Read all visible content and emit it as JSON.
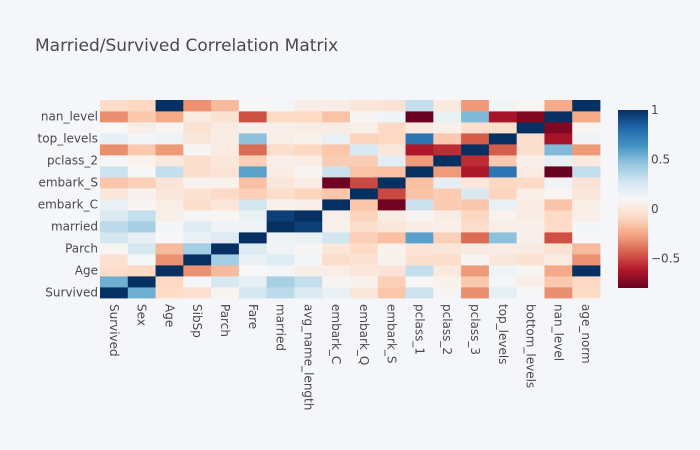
{
  "chart_data": {
    "type": "heatmap",
    "title": "Married/Survived Correlation Matrix",
    "labels": [
      "Survived",
      "Sex",
      "Age",
      "SibSp",
      "Parch",
      "Fare",
      "married",
      "avg_name_length",
      "embark_C",
      "embark_Q",
      "embark_S",
      "pclass_1",
      "pclass_2",
      "pclass_3",
      "top_levels",
      "bottom_levels",
      "nan_level",
      "age_norm"
    ],
    "x_tick_labels": [
      "Survived",
      "Sex",
      "Age",
      "SibSp",
      "Parch",
      "Fare",
      "married",
      "avg_name_length",
      "embark_C",
      "embark_Q",
      "embark_S",
      "pclass_1",
      "pclass_2",
      "pclass_3",
      "top_levels",
      "bottom_levels",
      "nan_level",
      "age_norm"
    ],
    "y_tick_labels": [
      "Survived",
      "",
      "Age",
      "",
      "Parch",
      "",
      "married",
      "",
      "embark_C",
      "",
      "embark_S",
      "",
      "pclass_2",
      "",
      "top_levels",
      "",
      "nan_level",
      ""
    ],
    "zmin": -0.8,
    "zmax": 1,
    "colorscale": [
      [
        0.0,
        "#67001f"
      ],
      [
        0.1,
        "#b2182b"
      ],
      [
        0.2,
        "#d6604d"
      ],
      [
        0.3,
        "#f4a582"
      ],
      [
        0.4,
        "#fddbc7"
      ],
      [
        0.5,
        "#f7f7f7"
      ],
      [
        0.6,
        "#d1e5f0"
      ],
      [
        0.7,
        "#92c5de"
      ],
      [
        0.8,
        "#4393c3"
      ],
      [
        0.9,
        "#2166ac"
      ],
      [
        1.0,
        "#053061"
      ]
    ],
    "colorbar": {
      "tickvals": [
        1,
        0.5,
        0,
        -0.5
      ],
      "ticktext": [
        "1",
        "0.5",
        "0",
        "−0.5"
      ]
    },
    "z": [
      [
        1.0,
        0.54,
        -0.07,
        -0.04,
        0.08,
        0.26,
        0.34,
        0.23,
        0.17,
        0.0,
        -0.15,
        0.29,
        0.09,
        -0.32,
        0.18,
        0.1,
        -0.32,
        -0.07
      ],
      [
        0.54,
        1.0,
        -0.09,
        0.11,
        0.25,
        0.18,
        0.4,
        0.32,
        0.08,
        0.07,
        -0.12,
        0.1,
        0.06,
        -0.14,
        0.12,
        0.04,
        -0.14,
        -0.09
      ],
      [
        -0.07,
        -0.09,
        1.0,
        -0.31,
        -0.19,
        0.1,
        0.12,
        0.04,
        0.04,
        -0.01,
        -0.02,
        0.32,
        0.01,
        -0.29,
        0.14,
        0.08,
        -0.24,
        1.0
      ],
      [
        -0.04,
        0.11,
        -0.31,
        1.0,
        0.41,
        0.16,
        0.21,
        0.12,
        -0.06,
        -0.03,
        0.07,
        -0.05,
        -0.06,
        0.09,
        0.0,
        -0.03,
        0.02,
        -0.31
      ],
      [
        0.08,
        0.25,
        -0.19,
        0.41,
        1.0,
        0.22,
        0.14,
        0.09,
        -0.01,
        -0.08,
        0.06,
        -0.02,
        -0.0,
        0.02,
        0.03,
        0.02,
        -0.03,
        -0.19
      ],
      [
        0.26,
        0.18,
        0.1,
        0.16,
        0.22,
        1.0,
        0.14,
        0.16,
        0.27,
        -0.12,
        -0.17,
        0.59,
        -0.12,
        -0.41,
        0.47,
        0.05,
        -0.48,
        0.1
      ],
      [
        0.34,
        0.4,
        0.12,
        0.21,
        0.14,
        0.14,
        1.0,
        0.95,
        0.06,
        -0.06,
        0.0,
        0.03,
        0.05,
        -0.06,
        0.04,
        0.05,
        -0.07,
        0.12
      ],
      [
        0.23,
        0.32,
        0.04,
        0.12,
        0.09,
        0.16,
        0.95,
        1.0,
        0.05,
        -0.1,
        0.03,
        0.08,
        0.03,
        -0.09,
        0.06,
        0.03,
        -0.08,
        0.04
      ],
      [
        0.17,
        0.08,
        0.04,
        -0.06,
        -0.01,
        0.27,
        0.06,
        0.05,
        1.0,
        -0.15,
        -0.78,
        0.3,
        -0.13,
        -0.15,
        0.17,
        0.03,
        -0.16,
        0.04
      ],
      [
        0.0,
        0.07,
        -0.01,
        -0.03,
        -0.08,
        -0.12,
        -0.06,
        -0.1,
        -0.15,
        1.0,
        -0.5,
        -0.16,
        -0.13,
        0.24,
        -0.1,
        0.04,
        0.08,
        -0.01
      ],
      [
        -0.15,
        -0.12,
        -0.02,
        0.07,
        0.06,
        -0.17,
        0.0,
        0.03,
        -0.78,
        -0.5,
        1.0,
        -0.17,
        0.19,
        0.0,
        -0.09,
        -0.08,
        0.13,
        -0.02
      ],
      [
        0.29,
        0.1,
        0.32,
        -0.05,
        -0.02,
        0.59,
        0.03,
        0.08,
        0.3,
        -0.16,
        -0.17,
        1.0,
        -0.29,
        -0.63,
        0.76,
        0.02,
        -0.79,
        0.32
      ],
      [
        0.09,
        0.06,
        0.01,
        -0.06,
        -0.0,
        -0.12,
        0.05,
        0.03,
        -0.13,
        -0.13,
        0.19,
        -0.29,
        1.0,
        -0.57,
        -0.14,
        0.05,
        0.17,
        0.01
      ],
      [
        -0.32,
        -0.14,
        -0.29,
        0.09,
        0.02,
        -0.41,
        -0.06,
        -0.09,
        -0.15,
        0.24,
        0.0,
        -0.63,
        -0.57,
        1.0,
        -0.45,
        -0.05,
        0.5,
        -0.29
      ],
      [
        0.18,
        0.12,
        0.14,
        0.0,
        0.03,
        0.47,
        0.04,
        0.06,
        0.17,
        -0.1,
        -0.09,
        0.76,
        -0.14,
        -0.45,
        1.0,
        -0.06,
        -0.65,
        0.14
      ],
      [
        0.1,
        0.04,
        0.08,
        -0.03,
        0.02,
        0.05,
        0.05,
        0.03,
        0.03,
        0.04,
        -0.08,
        0.02,
        0.05,
        -0.05,
        -0.06,
        1.0,
        -0.74,
        0.08
      ],
      [
        -0.32,
        -0.14,
        -0.24,
        0.02,
        -0.03,
        -0.48,
        -0.07,
        -0.08,
        -0.16,
        0.08,
        0.13,
        -0.79,
        0.17,
        0.5,
        -0.65,
        -0.74,
        1.0,
        -0.24
      ],
      [
        -0.07,
        -0.09,
        1.0,
        -0.31,
        -0.19,
        0.1,
        0.12,
        0.04,
        0.04,
        -0.01,
        -0.02,
        0.32,
        0.01,
        -0.29,
        0.14,
        0.08,
        -0.24,
        1.0
      ]
    ]
  }
}
